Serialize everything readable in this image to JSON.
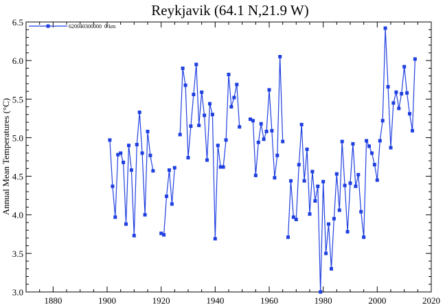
{
  "chart_data": {
    "type": "line",
    "title": "Reykjavik (64.1 N,21.9 W)",
    "ylabel": "Annual Mean Temperatures (°C)",
    "xlabel": "",
    "xlim": [
      1870,
      2020
    ],
    "ylim": [
      3.0,
      6.5
    ],
    "x_ticks": [
      1880,
      1900,
      1920,
      1940,
      1960,
      1980,
      2000,
      2020
    ],
    "y_ticks": [
      "3.0",
      "3.5",
      "4.0",
      "4.5",
      "5.0",
      "5.5",
      "6.0",
      "6.5"
    ],
    "grid": false,
    "legend_position": "top-left",
    "series": [
      {
        "name": "620040300000  0 km",
        "color": "#1f3fe0",
        "segments": [
          [
            [
              1901,
              4.97
            ],
            [
              1902,
              4.37
            ],
            [
              1903,
              3.97
            ],
            [
              1904,
              4.78
            ],
            [
              1905,
              4.8
            ],
            [
              1906,
              4.68
            ],
            [
              1907,
              3.88
            ],
            [
              1908,
              4.9
            ],
            [
              1909,
              4.58
            ],
            [
              1910,
              3.73
            ],
            [
              1911,
              4.91
            ],
            [
              1912,
              5.33
            ],
            [
              1913,
              4.8
            ],
            [
              1914,
              4.0
            ],
            [
              1915,
              5.08
            ],
            [
              1916,
              4.77
            ],
            [
              1917,
              4.57
            ]
          ],
          [
            [
              1920,
              3.76
            ],
            [
              1921,
              3.74
            ],
            [
              1922,
              4.24
            ],
            [
              1923,
              4.58
            ],
            [
              1924,
              4.14
            ],
            [
              1925,
              4.61
            ]
          ],
          [
            [
              1927,
              5.04
            ],
            [
              1928,
              5.9
            ],
            [
              1929,
              5.68
            ],
            [
              1930,
              4.74
            ],
            [
              1931,
              5.15
            ],
            [
              1932,
              5.56
            ],
            [
              1933,
              5.95
            ],
            [
              1934,
              5.16
            ],
            [
              1935,
              5.59
            ],
            [
              1936,
              5.29
            ],
            [
              1937,
              4.71
            ],
            [
              1938,
              5.44
            ],
            [
              1939,
              5.3
            ],
            [
              1940,
              3.69
            ],
            [
              1941,
              4.9
            ],
            [
              1942,
              4.62
            ],
            [
              1943,
              4.62
            ],
            [
              1944,
              4.97
            ],
            [
              1945,
              5.82
            ],
            [
              1946,
              5.4
            ],
            [
              1947,
              5.52
            ],
            [
              1948,
              5.69
            ],
            [
              1949,
              5.14
            ]
          ],
          [
            [
              1953,
              5.24
            ],
            [
              1954,
              5.22
            ],
            [
              1955,
              4.51
            ],
            [
              1956,
              4.94
            ],
            [
              1957,
              5.18
            ],
            [
              1958,
              4.98
            ],
            [
              1959,
              5.08
            ],
            [
              1960,
              5.62
            ],
            [
              1961,
              5.09
            ],
            [
              1962,
              4.48
            ],
            [
              1963,
              4.77
            ],
            [
              1964,
              6.05
            ],
            [
              1965,
              4.95
            ]
          ],
          [
            [
              1967,
              3.71
            ],
            [
              1968,
              4.44
            ],
            [
              1969,
              3.97
            ],
            [
              1970,
              3.94
            ],
            [
              1971,
              4.65
            ],
            [
              1972,
              5.17
            ],
            [
              1973,
              4.44
            ],
            [
              1974,
              4.85
            ],
            [
              1975,
              4.01
            ],
            [
              1976,
              4.56
            ],
            [
              1977,
              4.18
            ],
            [
              1978,
              4.37
            ],
            [
              1979,
              3.0
            ],
            [
              1980,
              4.43
            ],
            [
              1981,
              3.5
            ],
            [
              1982,
              3.88
            ],
            [
              1983,
              3.3
            ],
            [
              1984,
              3.95
            ],
            [
              1985,
              4.53
            ],
            [
              1986,
              4.06
            ],
            [
              1987,
              4.95
            ],
            [
              1988,
              4.38
            ],
            [
              1989,
              3.78
            ],
            [
              1990,
              4.41
            ],
            [
              1991,
              4.92
            ],
            [
              1992,
              4.37
            ],
            [
              1993,
              4.52
            ],
            [
              1994,
              4.04
            ],
            [
              1995,
              3.71
            ],
            [
              1996,
              4.96
            ],
            [
              1997,
              4.89
            ],
            [
              1998,
              4.8
            ],
            [
              1999,
              4.65
            ],
            [
              2000,
              4.45
            ],
            [
              2001,
              4.96
            ],
            [
              2002,
              5.22
            ],
            [
              2003,
              6.42
            ],
            [
              2004,
              5.66
            ],
            [
              2005,
              4.87
            ],
            [
              2006,
              5.45
            ],
            [
              2007,
              5.59
            ],
            [
              2008,
              5.38
            ],
            [
              2009,
              5.57
            ],
            [
              2010,
              5.92
            ],
            [
              2011,
              5.58
            ],
            [
              2012,
              5.31
            ],
            [
              2013,
              5.09
            ],
            [
              2014,
              6.02
            ]
          ]
        ]
      }
    ]
  }
}
